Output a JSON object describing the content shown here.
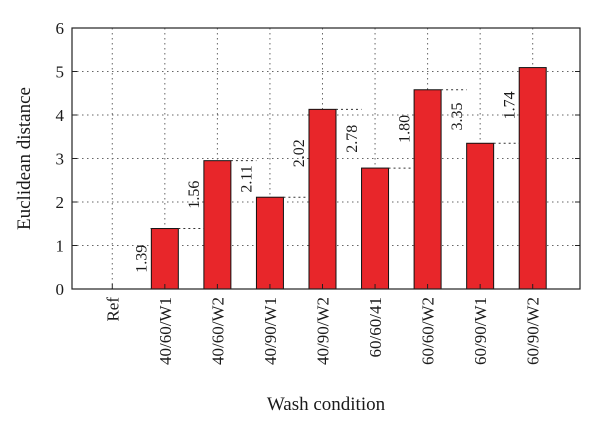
{
  "chart_data": {
    "type": "bar",
    "categories": [
      "Ref",
      "40/60/W1",
      "40/60/W2",
      "40/90/W1",
      "40/90/W2",
      "60/60/41",
      "60/60/W2",
      "60/90/W1",
      "60/90/W2"
    ],
    "values": [
      0,
      1.39,
      2.95,
      2.11,
      4.13,
      2.78,
      4.58,
      3.35,
      5.09
    ],
    "xlabel": "Wash condition",
    "ylabel": "Euclidean distance",
    "ylim": [
      0,
      6
    ],
    "yticks": [
      0,
      1,
      2,
      3,
      4,
      5,
      6
    ],
    "grid": true,
    "bar_color": "#e8262a",
    "annotations": [
      {
        "category": "40/60/W1",
        "text": "1.39"
      },
      {
        "category": "40/60/W2",
        "text": "1.56"
      },
      {
        "category": "40/90/W1",
        "text": "2.11"
      },
      {
        "category": "40/90/W2",
        "text": "2.02"
      },
      {
        "category": "60/60/41",
        "text": "2.78"
      },
      {
        "category": "60/60/W2",
        "text": "1.80"
      },
      {
        "category": "60/90/W1",
        "text": "3.35"
      },
      {
        "category": "60/90/W2",
        "text": "1.74"
      }
    ]
  }
}
